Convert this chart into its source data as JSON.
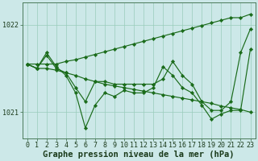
{
  "background_color": "#cce8e8",
  "plot_bg_color": "#cce8e8",
  "grid_color": "#99ccbb",
  "line_color": "#1a6b1a",
  "marker_color": "#1a6b1a",
  "xlabel": "Graphe pression niveau de la mer (hPa)",
  "ylim": [
    1020.7,
    1022.25
  ],
  "yticks": [
    1021,
    1022
  ],
  "xlim": [
    -0.5,
    23.5
  ],
  "xticks": [
    0,
    1,
    2,
    3,
    4,
    5,
    6,
    7,
    8,
    9,
    10,
    11,
    12,
    13,
    14,
    15,
    16,
    17,
    18,
    19,
    20,
    21,
    22,
    23
  ],
  "series": [
    [
      1021.55,
      1021.55,
      1021.55,
      1021.55,
      1021.58,
      1021.6,
      1021.63,
      1021.66,
      1021.69,
      1021.72,
      1021.75,
      1021.78,
      1021.81,
      1021.84,
      1021.87,
      1021.9,
      1021.93,
      1021.96,
      1021.99,
      1022.02,
      1022.05,
      1022.08,
      1022.08,
      1022.12
    ],
    [
      1021.55,
      1021.5,
      1021.5,
      1021.48,
      1021.45,
      1021.42,
      1021.38,
      1021.35,
      1021.32,
      1021.3,
      1021.28,
      1021.26,
      1021.24,
      1021.22,
      1021.2,
      1021.18,
      1021.16,
      1021.14,
      1021.12,
      1021.1,
      1021.07,
      1021.05,
      1021.03,
      1021.0
    ],
    [
      1021.55,
      1021.5,
      1021.68,
      1021.52,
      1021.42,
      1021.22,
      1020.82,
      1021.08,
      1021.22,
      1021.18,
      1021.25,
      1021.22,
      1021.22,
      1021.28,
      1021.52,
      1021.42,
      1021.28,
      1021.22,
      1021.08,
      1020.92,
      1020.98,
      1021.02,
      1021.02,
      1021.72
    ],
    [
      1021.55,
      1021.5,
      1021.65,
      1021.5,
      1021.45,
      1021.28,
      1021.12,
      1021.35,
      1021.35,
      1021.32,
      1021.32,
      1021.32,
      1021.32,
      1021.32,
      1021.38,
      1021.58,
      1021.42,
      1021.32,
      1021.12,
      1021.02,
      1021.02,
      1021.12,
      1021.68,
      1021.95
    ]
  ],
  "ticklabel_fontsize": 6.0,
  "xlabel_fontsize": 7.5,
  "marker_size": 2.2,
  "linewidth": 0.85
}
